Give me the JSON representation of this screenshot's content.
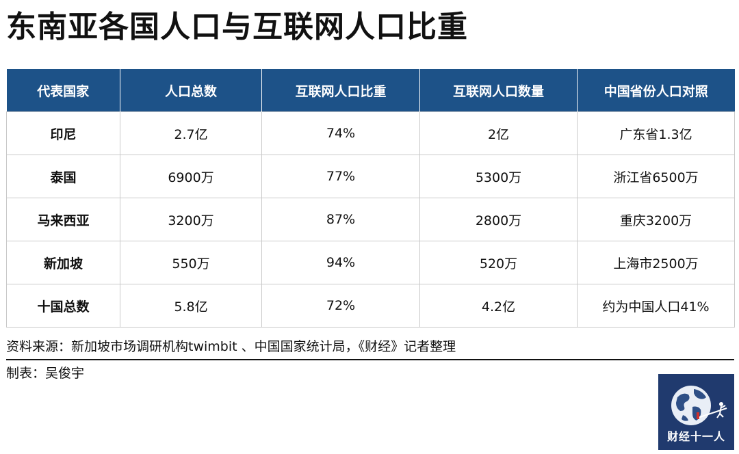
{
  "title": "东南亚各国人口与互联网人口比重",
  "table": {
    "headers": [
      "代表国家",
      "人口总数",
      "互联网人口比重",
      "互联网人口数量",
      "中国省份人口对照"
    ],
    "rows": [
      [
        "印尼",
        "2.7亿",
        "74%",
        "2亿",
        "广东省1.3亿"
      ],
      [
        "泰国",
        "6900万",
        "77%",
        "5300万",
        "浙江省6500万"
      ],
      [
        "马来西亚",
        "3200万",
        "87%",
        "2800万",
        "重庆3200万"
      ],
      [
        "新加坡",
        "550万",
        "94%",
        "520万",
        "上海市2500万"
      ],
      [
        "十国总数",
        "5.8亿",
        "72%",
        "4.2亿",
        "约为中国人口41%"
      ]
    ]
  },
  "footer": {
    "source": "资料来源：新加坡市场调研机构twimbit 、中国国家统计局，《财经》记者整理",
    "maker": "制表：吴俊宇"
  },
  "logo": {
    "text": "财经十一人",
    "icon": "globe-figure-icon",
    "bg_color": "#203a6e"
  },
  "colors": {
    "header_bg": "#1d5288",
    "header_text": "#ffffff",
    "grid": "#c9c9c9"
  }
}
